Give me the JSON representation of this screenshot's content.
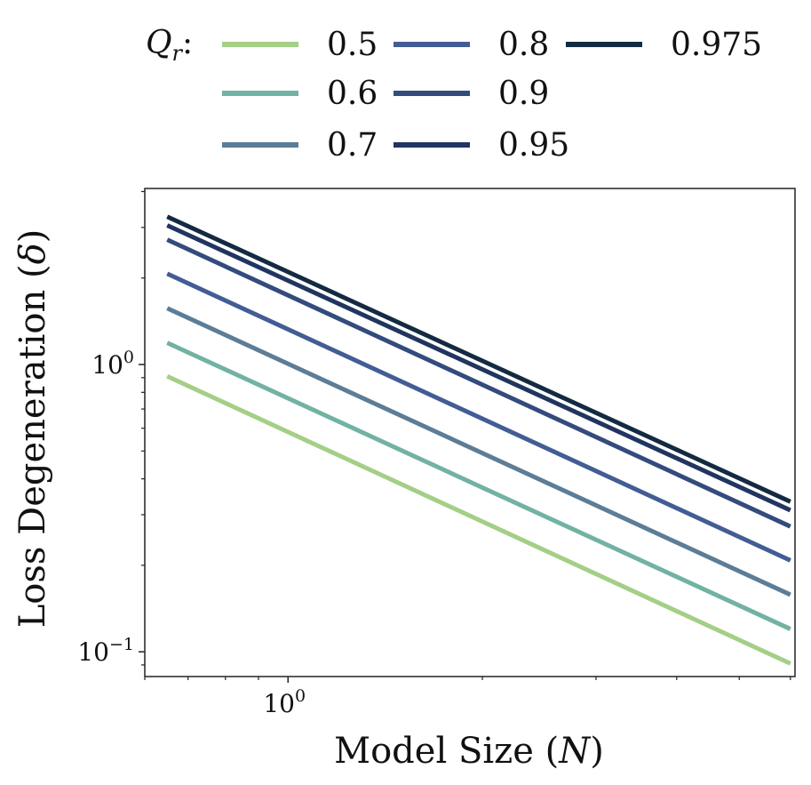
{
  "chart_data": {
    "type": "line",
    "title": "",
    "xlabel_text": "Model Size (",
    "xlabel_var": "N",
    "xlabel_close": ")",
    "ylabel_text": "Loss Degeneration (",
    "ylabel_var": "δ",
    "ylabel_close": ")",
    "x_scale": "log",
    "y_scale": "log",
    "xlim": [
      0.6,
      6.1
    ],
    "ylim": [
      0.082,
      4.1
    ],
    "x_ticks": [
      {
        "value": 1,
        "base": "10",
        "exp": "0"
      }
    ],
    "y_ticks": [
      {
        "value": 0.1,
        "base": "10",
        "exp": "−1"
      },
      {
        "value": 1,
        "base": "10",
        "exp": "0"
      }
    ],
    "legend": {
      "title_var": "Q",
      "title_sub": "r",
      "title_colon": ":",
      "placement": "top",
      "columns": 3
    },
    "x": [
      0.65,
      6.0
    ],
    "series": [
      {
        "name": "0.5",
        "color": "#a3cf86",
        "values": [
          0.91,
          0.091
        ]
      },
      {
        "name": "0.6",
        "color": "#72b2a4",
        "values": [
          1.19,
          0.12
        ]
      },
      {
        "name": "0.7",
        "color": "#5c7d97",
        "values": [
          1.57,
          0.158
        ]
      },
      {
        "name": "0.8",
        "color": "#435d94",
        "values": [
          2.07,
          0.208
        ]
      },
      {
        "name": "0.9",
        "color": "#334b7d",
        "values": [
          2.72,
          0.273
        ]
      },
      {
        "name": "0.95",
        "color": "#203560",
        "values": [
          3.05,
          0.311
        ]
      },
      {
        "name": "0.975",
        "color": "#132a42",
        "values": [
          3.27,
          0.333
        ]
      }
    ]
  }
}
